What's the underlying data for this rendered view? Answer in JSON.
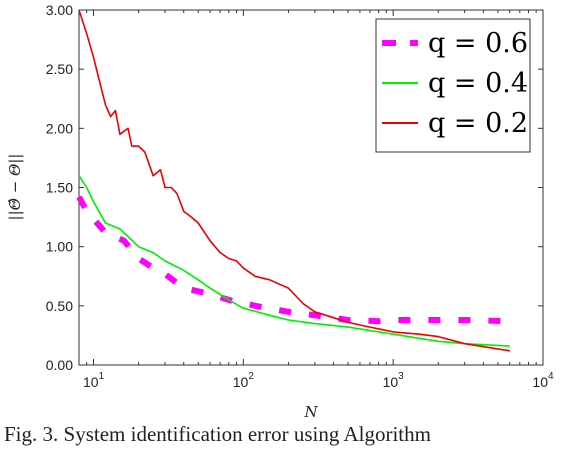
{
  "chart_data": {
    "type": "line",
    "title": "",
    "xlabel": "N",
    "ylabel": "||Θ̂ − Θ||",
    "x_scale": "log",
    "xlim": [
      8,
      10000
    ],
    "ylim": [
      0,
      3.0
    ],
    "x_ticks": [
      {
        "value": 10,
        "base": "10",
        "exp": "1"
      },
      {
        "value": 100,
        "base": "10",
        "exp": "2"
      },
      {
        "value": 1000,
        "base": "10",
        "exp": "3"
      },
      {
        "value": 10000,
        "base": "10",
        "exp": "4"
      }
    ],
    "y_ticks": [
      "0.00",
      "0.50",
      "1.00",
      "1.50",
      "2.00",
      "2.50",
      "3.00"
    ],
    "legend_position": "top-right",
    "grid": false,
    "series": [
      {
        "name": "q = 0.6",
        "legend_label": "q = 0.6",
        "color": "#ff00ff",
        "style": "dashed-thick",
        "x": [
          8,
          9,
          12,
          16,
          20,
          25,
          30,
          40,
          60,
          80,
          120,
          200,
          300,
          500,
          800,
          1000,
          2000,
          3000,
          6000
        ],
        "y": [
          1.42,
          1.3,
          1.12,
          1.05,
          0.9,
          0.82,
          0.77,
          0.65,
          0.6,
          0.55,
          0.5,
          0.45,
          0.42,
          0.38,
          0.37,
          0.38,
          0.38,
          0.38,
          0.37
        ]
      },
      {
        "name": "q = 0.4",
        "legend_label": "q = 0.4",
        "color": "#00ee00",
        "style": "solid",
        "x": [
          8,
          9,
          10,
          12,
          15,
          20,
          25,
          30,
          40,
          50,
          60,
          80,
          100,
          150,
          200,
          300,
          500,
          1000,
          2000,
          3000,
          6000
        ],
        "y": [
          1.6,
          1.5,
          1.38,
          1.2,
          1.15,
          1.0,
          0.95,
          0.88,
          0.8,
          0.72,
          0.65,
          0.55,
          0.48,
          0.42,
          0.38,
          0.35,
          0.32,
          0.26,
          0.2,
          0.18,
          0.16
        ]
      },
      {
        "name": "q = 0.2",
        "legend_label": "q = 0.2",
        "color": "#ee0000",
        "style": "solid",
        "x": [
          8,
          9,
          10,
          12,
          13,
          14,
          15,
          17,
          18,
          20,
          22,
          25,
          28,
          30,
          33,
          36,
          40,
          45,
          50,
          60,
          70,
          80,
          90,
          100,
          120,
          150,
          200,
          250,
          300,
          400,
          500,
          700,
          1000,
          1500,
          2000,
          3000,
          6000
        ],
        "y": [
          3.0,
          2.8,
          2.6,
          2.2,
          2.1,
          2.15,
          1.95,
          2.0,
          1.85,
          1.85,
          1.8,
          1.6,
          1.65,
          1.5,
          1.5,
          1.45,
          1.3,
          1.25,
          1.2,
          1.05,
          0.95,
          0.9,
          0.88,
          0.82,
          0.75,
          0.72,
          0.65,
          0.52,
          0.45,
          0.4,
          0.36,
          0.32,
          0.28,
          0.26,
          0.24,
          0.18,
          0.12
        ]
      }
    ]
  },
  "caption": "Fig. 3. System identification error using Algorithm"
}
